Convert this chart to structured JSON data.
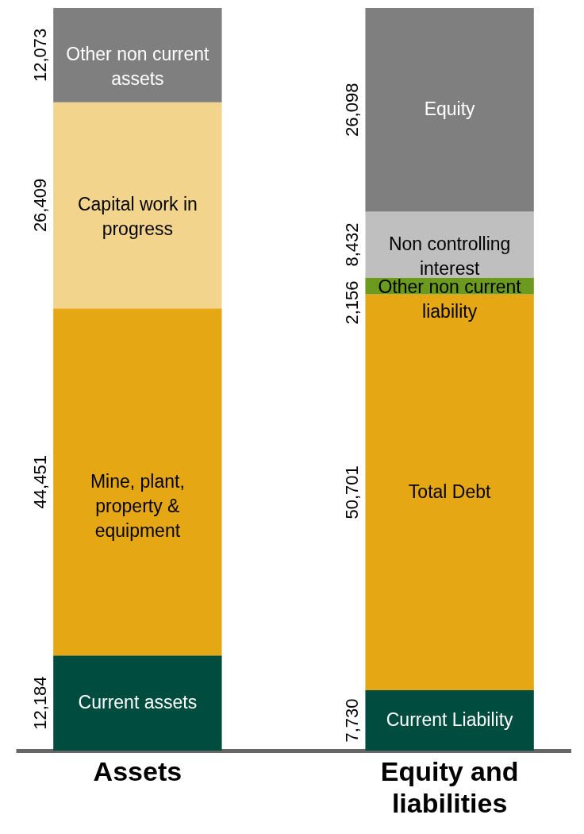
{
  "chart_data": {
    "type": "bar",
    "stacked": true,
    "categories": [
      "Assets",
      "Equity and liabilities"
    ],
    "series": [
      {
        "name": "Current assets",
        "color": "#004c3f",
        "values": [
          12184,
          null
        ],
        "value_labels": [
          "12,184",
          null
        ]
      },
      {
        "name": "Mine, plant, property & equipment",
        "color": "#e5a714",
        "values": [
          44451,
          null
        ],
        "value_labels": [
          "44,451",
          null
        ]
      },
      {
        "name": "Capital work in progress",
        "color": "#f2d48c",
        "values": [
          26409,
          null
        ],
        "value_labels": [
          "26,409",
          null
        ]
      },
      {
        "name": "Other non current assets",
        "color": "#7f7f7f",
        "values": [
          12073,
          null
        ],
        "value_labels": [
          "12,073",
          null
        ]
      },
      {
        "name": "Current Liability",
        "color": "#004c3f",
        "values": [
          null,
          7730
        ],
        "value_labels": [
          null,
          "7,730"
        ]
      },
      {
        "name": "Total Debt",
        "color": "#e5a714",
        "values": [
          null,
          50701
        ],
        "value_labels": [
          null,
          "50,701"
        ]
      },
      {
        "name": "Other non current liability",
        "color": "#6b9a1e",
        "values": [
          null,
          2156
        ],
        "value_labels": [
          null,
          "2,156"
        ]
      },
      {
        "name": "Non controlling interest",
        "color": "#bfbfbf",
        "values": [
          null,
          8432
        ],
        "value_labels": [
          null,
          "8,432"
        ]
      },
      {
        "name": "Equity",
        "color": "#7f7f7f",
        "values": [
          null,
          26098
        ],
        "value_labels": [
          null,
          "26,098"
        ]
      }
    ]
  }
}
